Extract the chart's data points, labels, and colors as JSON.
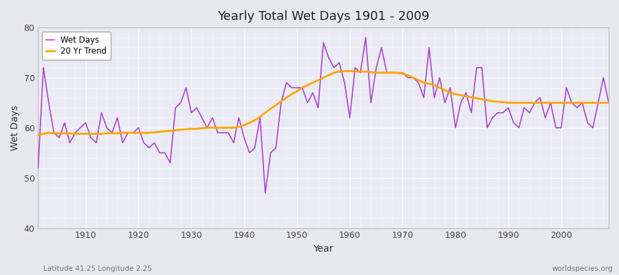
{
  "title": "Yearly Total Wet Days 1901 - 2009",
  "xlabel": "Year",
  "ylabel": "Wet Days",
  "footnote_left": "Latitude 41.25 Longitude 2.25",
  "footnote_right": "worldspecies.org",
  "xlim": [
    1901,
    2009
  ],
  "ylim": [
    40,
    80
  ],
  "yticks": [
    40,
    50,
    60,
    70,
    80
  ],
  "xticks": [
    1910,
    1920,
    1930,
    1940,
    1950,
    1960,
    1970,
    1980,
    1990,
    2000
  ],
  "line_color": "#AA44CC",
  "trend_color": "#FFA500",
  "bg_color": "#E8E8F0",
  "plot_bg_color": "#EAEAF4",
  "wet_days": {
    "1901": 52,
    "1902": 72,
    "1903": 65,
    "1904": 59,
    "1905": 58,
    "1906": 61,
    "1907": 57,
    "1908": 59,
    "1909": 60,
    "1910": 61,
    "1911": 58,
    "1912": 57,
    "1913": 63,
    "1914": 60,
    "1915": 59,
    "1916": 62,
    "1917": 57,
    "1918": 59,
    "1919": 59,
    "1920": 60,
    "1921": 57,
    "1922": 56,
    "1923": 57,
    "1924": 55,
    "1925": 55,
    "1926": 53,
    "1927": 64,
    "1928": 65,
    "1929": 68,
    "1930": 63,
    "1931": 64,
    "1932": 62,
    "1933": 60,
    "1934": 62,
    "1935": 59,
    "1936": 59,
    "1937": 59,
    "1938": 57,
    "1939": 62,
    "1940": 58,
    "1941": 55,
    "1942": 56,
    "1943": 62,
    "1944": 47,
    "1945": 55,
    "1946": 56,
    "1947": 65,
    "1948": 69,
    "1949": 68,
    "1950": 68,
    "1951": 68,
    "1952": 65,
    "1953": 67,
    "1954": 64,
    "1955": 77,
    "1956": 74,
    "1957": 72,
    "1958": 73,
    "1959": 69,
    "1960": 62,
    "1961": 72,
    "1962": 71,
    "1963": 78,
    "1964": 65,
    "1965": 72,
    "1966": 76,
    "1967": 71,
    "1968": 71,
    "1969": 71,
    "1970": 71,
    "1971": 70,
    "1972": 70,
    "1973": 69,
    "1974": 66,
    "1975": 76,
    "1976": 66,
    "1977": 70,
    "1978": 65,
    "1979": 68,
    "1980": 60,
    "1981": 65,
    "1982": 67,
    "1983": 63,
    "1984": 72,
    "1985": 72,
    "1986": 60,
    "1987": 62,
    "1988": 63,
    "1989": 63,
    "1990": 64,
    "1991": 61,
    "1992": 60,
    "1993": 64,
    "1994": 63,
    "1995": 65,
    "1996": 66,
    "1997": 62,
    "1998": 65,
    "1999": 60,
    "2000": 60,
    "2001": 68,
    "2002": 65,
    "2003": 64,
    "2004": 65,
    "2005": 61,
    "2006": 60,
    "2007": 65,
    "2008": 70,
    "2009": 65
  },
  "trend_days": {
    "1901": 58.5,
    "1902": 58.8,
    "1903": 59.0,
    "1904": 58.9,
    "1905": 58.9,
    "1906": 58.9,
    "1907": 58.9,
    "1908": 58.8,
    "1909": 58.8,
    "1910": 58.8,
    "1911": 58.8,
    "1912": 58.8,
    "1913": 58.8,
    "1914": 58.9,
    "1915": 58.9,
    "1916": 58.9,
    "1917": 59.0,
    "1918": 59.0,
    "1919": 59.0,
    "1920": 59.0,
    "1921": 59.0,
    "1922": 59.0,
    "1923": 59.1,
    "1924": 59.2,
    "1925": 59.3,
    "1926": 59.4,
    "1927": 59.5,
    "1928": 59.6,
    "1929": 59.7,
    "1930": 59.8,
    "1931": 59.8,
    "1932": 59.9,
    "1933": 60.0,
    "1934": 60.0,
    "1935": 60.0,
    "1936": 60.0,
    "1937": 60.0,
    "1938": 60.0,
    "1939": 60.2,
    "1940": 60.5,
    "1941": 61.0,
    "1942": 61.5,
    "1943": 62.2,
    "1944": 63.0,
    "1945": 63.8,
    "1946": 64.5,
    "1947": 65.3,
    "1948": 66.0,
    "1949": 66.7,
    "1950": 67.3,
    "1951": 68.0,
    "1952": 68.5,
    "1953": 69.0,
    "1954": 69.5,
    "1955": 70.0,
    "1956": 70.5,
    "1957": 71.0,
    "1958": 71.2,
    "1959": 71.3,
    "1960": 71.3,
    "1961": 71.3,
    "1962": 71.2,
    "1963": 71.2,
    "1964": 71.1,
    "1965": 71.0,
    "1966": 71.0,
    "1967": 71.0,
    "1968": 71.0,
    "1969": 71.0,
    "1970": 70.8,
    "1971": 70.5,
    "1972": 70.0,
    "1973": 69.5,
    "1974": 69.0,
    "1975": 68.8,
    "1976": 68.5,
    "1977": 68.0,
    "1978": 67.5,
    "1979": 67.0,
    "1980": 66.7,
    "1981": 66.5,
    "1982": 66.3,
    "1983": 66.1,
    "1984": 65.9,
    "1985": 65.7,
    "1986": 65.5,
    "1987": 65.3,
    "1988": 65.2,
    "1989": 65.1,
    "1990": 65.0,
    "1991": 65.0,
    "1992": 65.0,
    "1993": 65.0,
    "1994": 65.0,
    "1995": 65.0,
    "1996": 65.0,
    "1997": 65.0,
    "1998": 65.0,
    "1999": 65.0,
    "2000": 65.0,
    "2001": 65.0,
    "2002": 65.0,
    "2003": 65.0,
    "2004": 65.0,
    "2005": 65.0,
    "2006": 65.0,
    "2007": 65.0,
    "2008": 65.0,
    "2009": 65.0
  }
}
